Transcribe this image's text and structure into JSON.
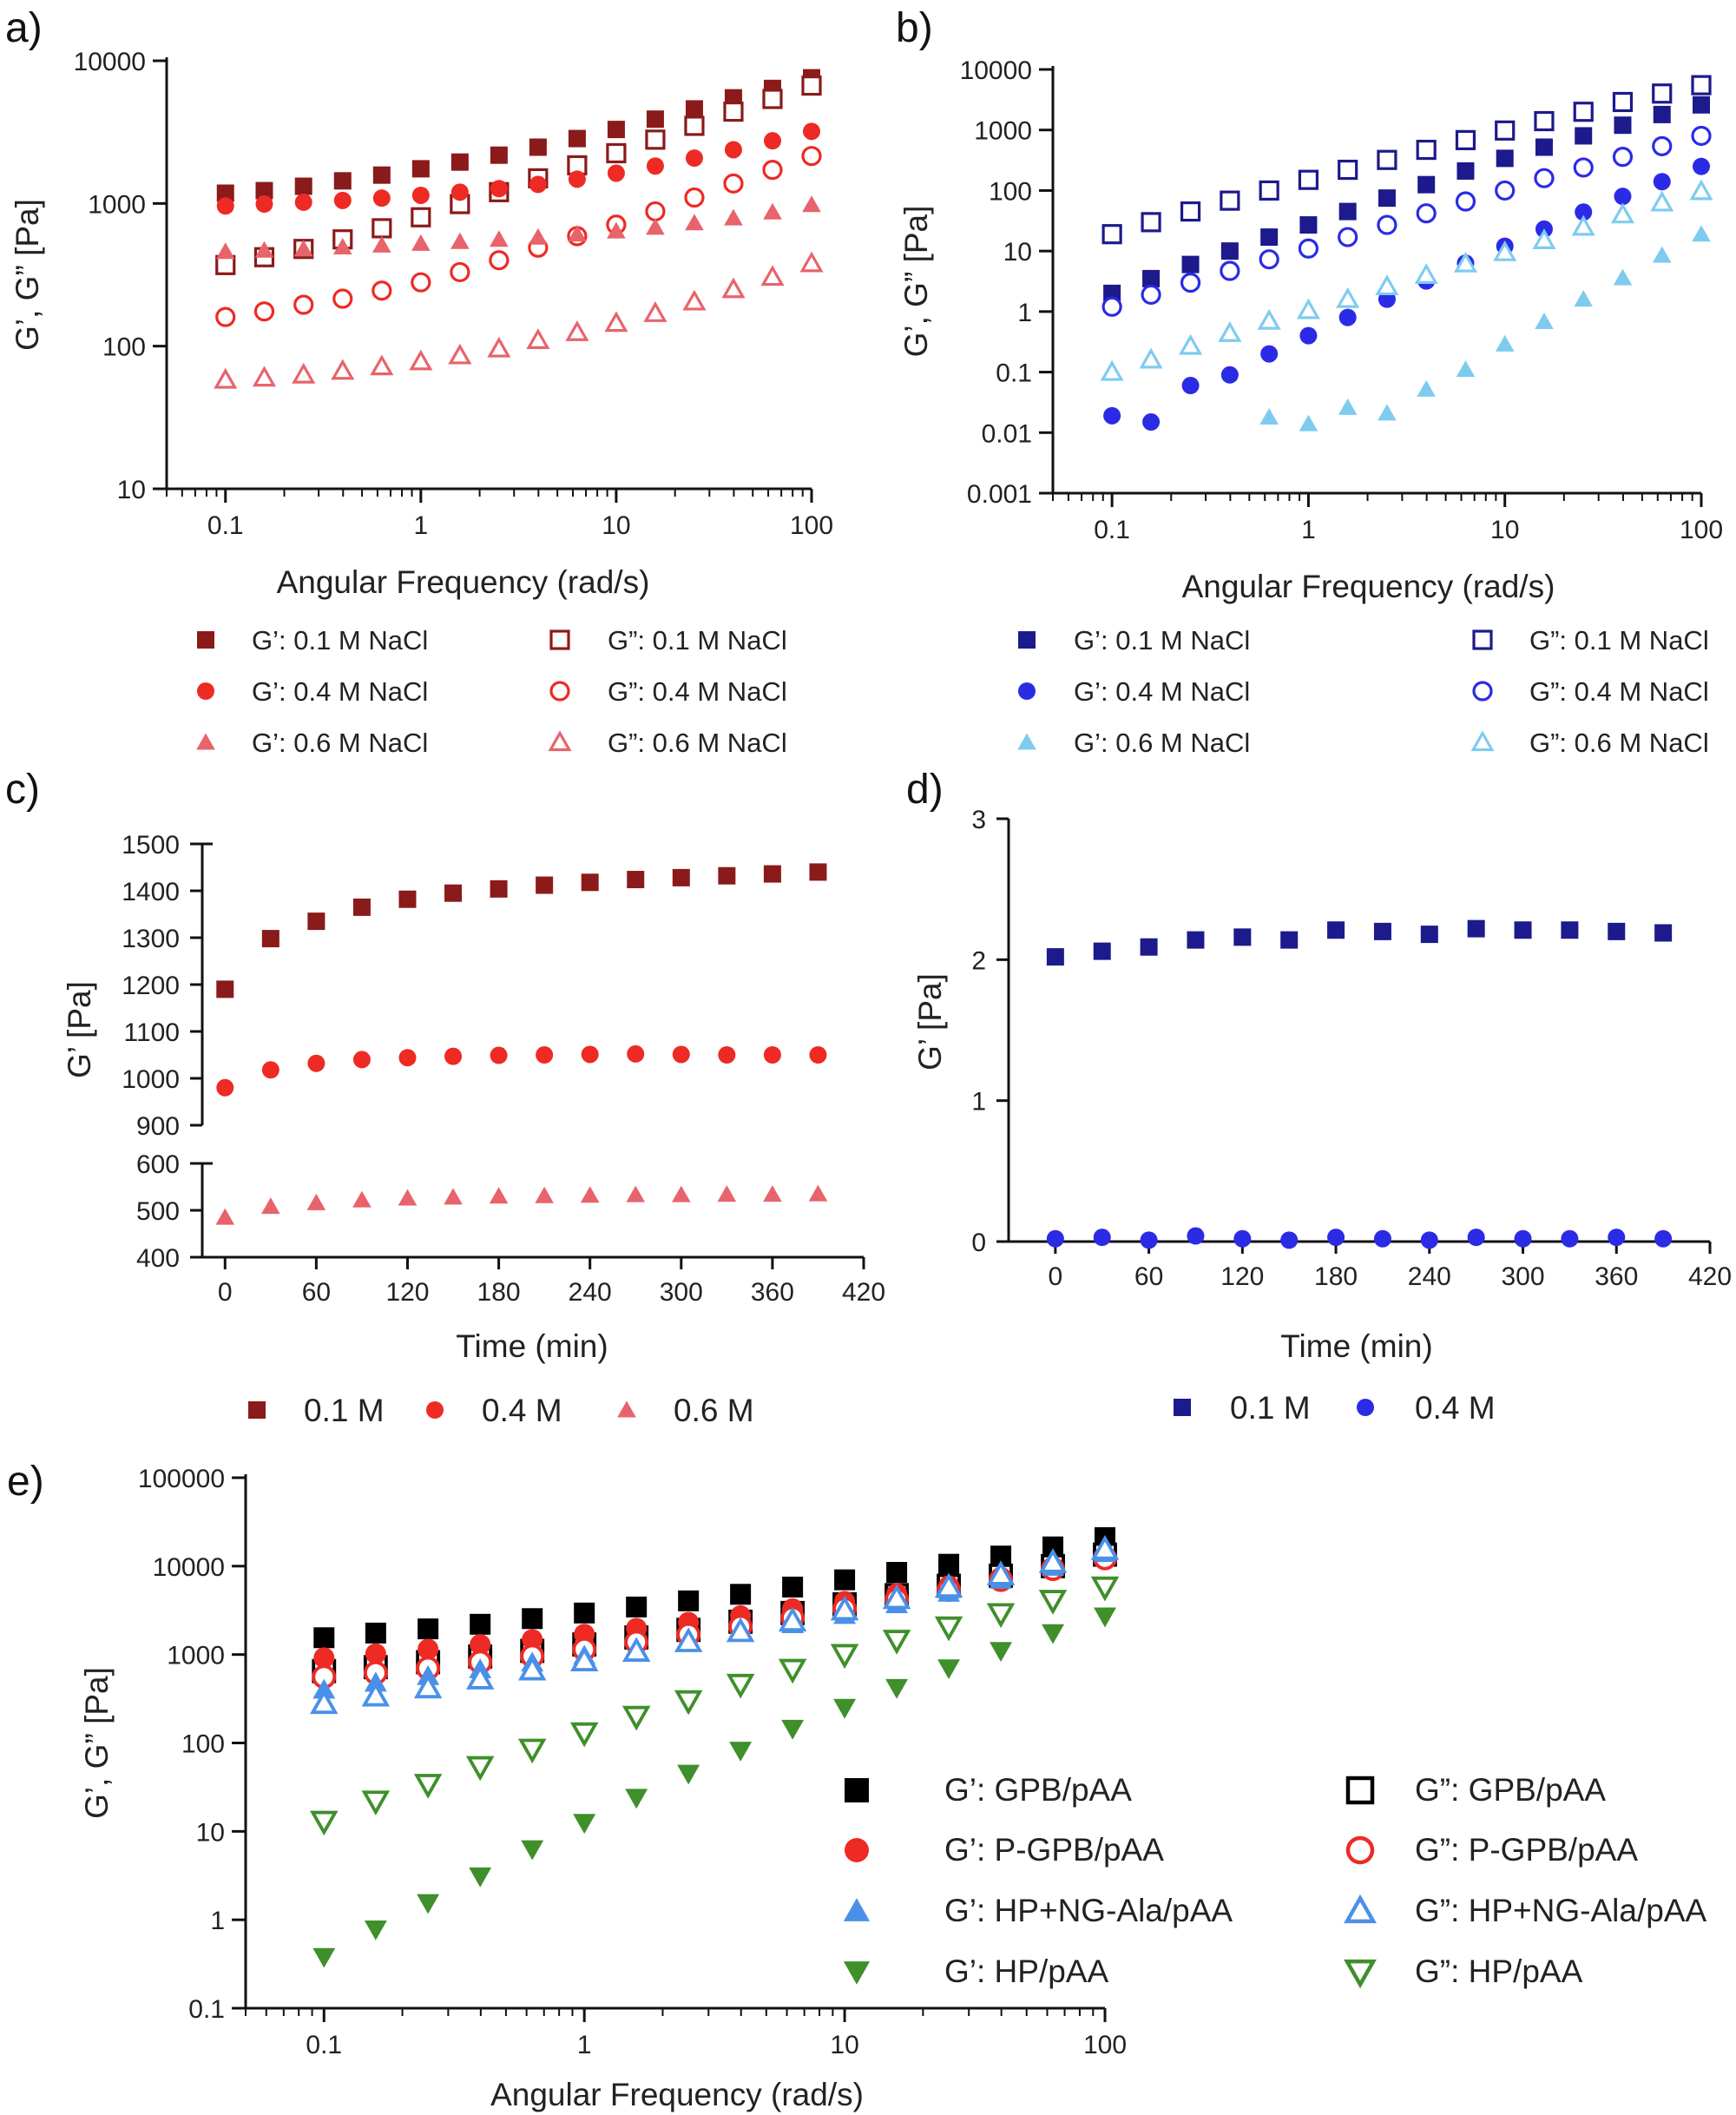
{
  "colors": {
    "dark_red": "#8B1A1A",
    "red": "#EE2A24",
    "light_red": "#E8636B",
    "navy": "#1C1A8C",
    "blue": "#2B2BE6",
    "light_blue": "#7FCBF0",
    "black": "#000000",
    "p_red": "#EE2A24",
    "sky": "#4A90E8",
    "green": "#3F8F2A"
  },
  "chart_data": [
    {
      "id": "a",
      "panel_label": "a)",
      "type": "scatter",
      "xscale": "log",
      "yscale": "log",
      "xlim": [
        0.05,
        100
      ],
      "ylim": [
        10,
        10000
      ],
      "xticks": [
        "0.1",
        "1",
        "10",
        "100"
      ],
      "yticks": [
        "10",
        "100",
        "1000",
        "10000"
      ],
      "xlabel": "Angular Frequency (rad/s)",
      "ylabel": "G’, G” [Pa]",
      "legend_columns": 2,
      "x": [
        0.1,
        0.158,
        0.251,
        0.398,
        0.631,
        1,
        1.585,
        2.512,
        3.981,
        6.31,
        10,
        15.85,
        25.12,
        39.81,
        63.1,
        100
      ],
      "series": [
        {
          "name": "G’: 0.1 M NaCl",
          "marker": "square",
          "filled": true,
          "color": "dark_red",
          "values": [
            1180,
            1230,
            1320,
            1440,
            1580,
            1750,
            1950,
            2180,
            2480,
            2850,
            3300,
            3900,
            4600,
            5500,
            6400,
            7600
          ]
        },
        {
          "name": "G”: 0.1 M NaCl",
          "marker": "square",
          "filled": false,
          "color": "dark_red",
          "values": [
            370,
            420,
            480,
            560,
            670,
            800,
            990,
            1200,
            1500,
            1850,
            2250,
            2800,
            3500,
            4400,
            5400,
            6700
          ]
        },
        {
          "name": "G’: 0.4 M NaCl",
          "marker": "circle",
          "filled": true,
          "color": "red",
          "values": [
            960,
            990,
            1020,
            1050,
            1090,
            1140,
            1200,
            1270,
            1360,
            1480,
            1630,
            1830,
            2080,
            2380,
            2750,
            3200
          ]
        },
        {
          "name": "G”: 0.4 M NaCl",
          "marker": "circle",
          "filled": false,
          "color": "red",
          "values": [
            160,
            175,
            195,
            215,
            245,
            280,
            330,
            400,
            490,
            590,
            710,
            880,
            1100,
            1380,
            1720,
            2150
          ]
        },
        {
          "name": "G’: 0.6 M NaCl",
          "marker": "triangle",
          "filled": true,
          "color": "light_red",
          "values": [
            460,
            470,
            480,
            495,
            510,
            525,
            540,
            560,
            580,
            610,
            640,
            680,
            730,
            790,
            870,
            980
          ]
        },
        {
          "name": "G”: 0.6 M NaCl",
          "marker": "triangle",
          "filled": false,
          "color": "light_red",
          "values": [
            58,
            60,
            63,
            67,
            72,
            78,
            86,
            96,
            110,
            125,
            145,
            170,
            205,
            250,
            305,
            380
          ]
        }
      ]
    },
    {
      "id": "b",
      "panel_label": "b)",
      "type": "scatter",
      "xscale": "log",
      "yscale": "log",
      "xlim": [
        0.05,
        100
      ],
      "ylim": [
        0.001,
        10000
      ],
      "xticks": [
        "0.1",
        "1",
        "10",
        "100"
      ],
      "yticks": [
        "0.001",
        "0.01",
        "0.1",
        "1",
        "10",
        "100",
        "1000",
        "10000"
      ],
      "xlabel": "Angular Frequency (rad/s)",
      "ylabel": "G’, G” [Pa]",
      "legend_columns": 2,
      "x": [
        0.1,
        0.158,
        0.251,
        0.398,
        0.631,
        1,
        1.585,
        2.512,
        3.981,
        6.31,
        10,
        15.85,
        25.12,
        39.81,
        63.1,
        100
      ],
      "series": [
        {
          "name": "G’: 0.1 M NaCl",
          "marker": "square",
          "filled": true,
          "color": "navy",
          "values": [
            2,
            3.5,
            6,
            10,
            17,
            27,
            45,
            75,
            125,
            210,
            340,
            520,
            800,
            1200,
            1800,
            2600
          ]
        },
        {
          "name": "G”: 0.1 M NaCl",
          "marker": "square",
          "filled": false,
          "color": "navy",
          "values": [
            19,
            30,
            45,
            68,
            100,
            150,
            220,
            320,
            470,
            680,
            980,
            1400,
            2000,
            2900,
            4000,
            5500
          ]
        },
        {
          "name": "G’: 0.4 M NaCl",
          "marker": "circle",
          "filled": true,
          "color": "blue",
          "values": [
            0.019,
            0.015,
            0.06,
            0.09,
            0.2,
            0.4,
            0.8,
            1.6,
            3.2,
            6.3,
            12,
            23,
            44,
            80,
            140,
            250
          ]
        },
        {
          "name": "G”: 0.4 M NaCl",
          "marker": "circle",
          "filled": false,
          "color": "blue",
          "values": [
            1.2,
            1.9,
            3,
            4.7,
            7.3,
            11,
            17,
            27,
            42,
            66,
            100,
            160,
            240,
            360,
            540,
            800
          ]
        },
        {
          "name": "G’: 0.6 M NaCl",
          "marker": "triangle",
          "filled": true,
          "color": "light_blue",
          "values": [
            null,
            null,
            null,
            null,
            0.018,
            0.014,
            0.026,
            0.021,
            0.052,
            0.11,
            0.29,
            0.68,
            1.6,
            3.6,
            8.5,
            19
          ]
        },
        {
          "name": "G”: 0.6 M NaCl",
          "marker": "triangle",
          "filled": false,
          "color": "light_blue",
          "values": [
            0.1,
            0.16,
            0.27,
            0.44,
            0.7,
            1.05,
            1.6,
            2.6,
            4,
            6.2,
            9.5,
            15,
            25,
            40,
            63,
            97
          ]
        }
      ]
    },
    {
      "id": "c",
      "panel_label": "c)",
      "type": "scatter",
      "xlim": [
        -15,
        420
      ],
      "xticks": [
        "0",
        "60",
        "120",
        "180",
        "240",
        "300",
        "360",
        "420"
      ],
      "y_segments": [
        {
          "range": [
            900,
            1500
          ],
          "ticks": [
            "900",
            "1000",
            "1100",
            "1200",
            "1300",
            "1400",
            "1500"
          ]
        },
        {
          "range": [
            400,
            600
          ],
          "ticks": [
            "400",
            "500",
            "600"
          ]
        }
      ],
      "xlabel": "Time (min)",
      "ylabel": "G’ [Pa]",
      "legend_columns": 3,
      "x": [
        0,
        30,
        60,
        90,
        120,
        150,
        180,
        210,
        240,
        270,
        300,
        330,
        360,
        390
      ],
      "series": [
        {
          "name": "0.1 M",
          "marker": "square",
          "filled": true,
          "color": "dark_red",
          "values": [
            1190,
            1298,
            1335,
            1365,
            1382,
            1395,
            1404,
            1412,
            1418,
            1424,
            1428,
            1432,
            1436,
            1440
          ]
        },
        {
          "name": "0.4 M",
          "marker": "circle",
          "filled": true,
          "color": "red",
          "values": [
            980,
            1018,
            1032,
            1040,
            1044,
            1047,
            1049,
            1050,
            1051,
            1052,
            1051,
            1050,
            1050,
            1050
          ]
        },
        {
          "name": "0.6 M",
          "marker": "triangle",
          "filled": true,
          "color": "light_red",
          "values": [
            485,
            508,
            516,
            522,
            526,
            528,
            530,
            531,
            532,
            533,
            533,
            534,
            534,
            535
          ]
        }
      ]
    },
    {
      "id": "d",
      "panel_label": "d)",
      "type": "scatter",
      "xlim": [
        -30,
        420
      ],
      "ylim": [
        0,
        3
      ],
      "xticks": [
        "0",
        "60",
        "120",
        "180",
        "240",
        "300",
        "360",
        "420"
      ],
      "yticks": [
        "0",
        "1",
        "2",
        "3"
      ],
      "xlabel": "Time (min)",
      "ylabel": "G’ [Pa]",
      "legend_columns": 2,
      "reference_line": {
        "y": 0,
        "style": "dotted"
      },
      "x": [
        0,
        30,
        60,
        90,
        120,
        150,
        180,
        210,
        240,
        270,
        300,
        330,
        360,
        390
      ],
      "series": [
        {
          "name": "0.1 M",
          "marker": "square",
          "filled": true,
          "color": "navy",
          "values": [
            2.02,
            2.06,
            2.09,
            2.14,
            2.16,
            2.14,
            2.21,
            2.2,
            2.18,
            2.22,
            2.21,
            2.21,
            2.2,
            2.19
          ]
        },
        {
          "name": "0.4 M",
          "marker": "circle",
          "filled": true,
          "color": "blue",
          "values": [
            0.02,
            0.03,
            0.01,
            0.04,
            0.02,
            0.01,
            0.03,
            0.02,
            0.01,
            0.03,
            0.02,
            0.02,
            0.03,
            0.02
          ]
        }
      ]
    },
    {
      "id": "e",
      "panel_label": "e)",
      "type": "scatter",
      "xscale": "log",
      "yscale": "log",
      "xlim": [
        0.05,
        100
      ],
      "ylim": [
        0.1,
        100000
      ],
      "xticks": [
        "0.1",
        "1",
        "10",
        "100"
      ],
      "yticks": [
        "0.1",
        "1",
        "10",
        "100",
        "1000",
        "10000",
        "100000"
      ],
      "xlabel": "Angular Frequency (rad/s)",
      "ylabel": "G’, G” [Pa]",
      "legend_columns": 2,
      "x": [
        0.1,
        0.158,
        0.251,
        0.398,
        0.631,
        1,
        1.585,
        2.512,
        3.981,
        6.31,
        10,
        15.85,
        25.12,
        39.81,
        63.1,
        100
      ],
      "series": [
        {
          "name": "G’: GPB/pAA",
          "marker": "square",
          "filled": true,
          "color": "black",
          "values": [
            1550,
            1750,
            1950,
            2200,
            2550,
            2950,
            3450,
            4050,
            4800,
            5800,
            7000,
            8500,
            10500,
            13000,
            16500,
            21000
          ]
        },
        {
          "name": "G”: GPB/pAA",
          "marker": "square",
          "filled": false,
          "color": "black",
          "values": [
            650,
            720,
            820,
            950,
            1100,
            1300,
            1560,
            1900,
            2350,
            2950,
            3700,
            4700,
            6000,
            7800,
            10000,
            13500
          ]
        },
        {
          "name": "G’: P-GPB/pAA",
          "marker": "circle",
          "filled": true,
          "color": "p_red",
          "values": [
            920,
            1020,
            1150,
            1300,
            1480,
            1700,
            1980,
            2320,
            2750,
            3300,
            4000,
            4900,
            6000,
            7500,
            9500,
            12500
          ]
        },
        {
          "name": "G”: P-GPB/pAA",
          "marker": "circle",
          "filled": false,
          "color": "p_red",
          "values": [
            560,
            620,
            700,
            820,
            960,
            1140,
            1380,
            1680,
            2070,
            2600,
            3300,
            4200,
            5400,
            7000,
            9300,
            12300
          ]
        },
        {
          "name": "G’: HP+NG-Ala/pAA",
          "marker": "triangle",
          "filled": true,
          "color": "sky",
          "values": [
            400,
            480,
            570,
            680,
            810,
            970,
            1170,
            1420,
            1760,
            2200,
            2800,
            3700,
            5000,
            7000,
            9800,
            14000
          ]
        },
        {
          "name": "G”: HP+NG-Ala/pAA",
          "marker": "triangle",
          "filled": false,
          "color": "sky",
          "values": [
            280,
            340,
            420,
            530,
            670,
            850,
            1090,
            1400,
            1820,
            2400,
            3200,
            4300,
            5800,
            8000,
            11000,
            15500
          ]
        },
        {
          "name": "G’: HP/pAA",
          "marker": "triangle-down",
          "filled": true,
          "color": "green",
          "values": [
            0.38,
            0.78,
            1.55,
            3.1,
            6.3,
            12.5,
            24,
            45,
            82,
            145,
            250,
            420,
            700,
            1100,
            1750,
            2700
          ]
        },
        {
          "name": "G”: HP/pAA",
          "marker": "triangle-down",
          "filled": false,
          "color": "green",
          "values": [
            13,
            22,
            34,
            54,
            85,
            130,
            200,
            300,
            460,
            680,
            1000,
            1450,
            2050,
            2900,
            4100,
            5800
          ]
        }
      ]
    }
  ]
}
